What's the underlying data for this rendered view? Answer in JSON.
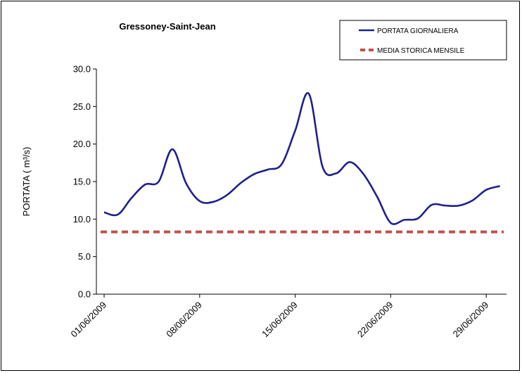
{
  "chart_data": {
    "type": "line",
    "title": "Gressoney-Saint-Jean",
    "xlabel": "",
    "ylabel": "PORTATA ( m³/s)",
    "ylim": [
      0,
      30
    ],
    "yticks": [
      "0.0",
      "5.0",
      "10.0",
      "15.0",
      "20.0",
      "25.0",
      "30.0"
    ],
    "xticks": [
      "01/06/2009",
      "08/06/2009",
      "15/06/2009",
      "22/06/2009",
      "29/06/2009"
    ],
    "legend_position": "top-right",
    "grid": false,
    "series": [
      {
        "name": "PORTATA GIORNALIERA",
        "color": "#1f1f8f",
        "style": "solid",
        "x": [
          "01/06/2009",
          "02/06/2009",
          "03/06/2009",
          "04/06/2009",
          "05/06/2009",
          "06/06/2009",
          "07/06/2009",
          "08/06/2009",
          "09/06/2009",
          "10/06/2009",
          "11/06/2009",
          "12/06/2009",
          "13/06/2009",
          "14/06/2009",
          "15/06/2009",
          "16/06/2009",
          "17/06/2009",
          "18/06/2009",
          "19/06/2009",
          "20/06/2009",
          "21/06/2009",
          "22/06/2009",
          "23/06/2009",
          "24/06/2009",
          "25/06/2009",
          "26/06/2009",
          "27/06/2009",
          "28/06/2009",
          "29/06/2009",
          "30/06/2009"
        ],
        "values": [
          10.9,
          10.6,
          12.8,
          14.6,
          15.0,
          19.3,
          14.8,
          12.4,
          12.3,
          13.2,
          14.8,
          16.0,
          16.6,
          17.3,
          21.8,
          26.7,
          17.0,
          16.1,
          17.6,
          16.0,
          13.0,
          9.5,
          9.9,
          10.1,
          11.9,
          11.8,
          11.8,
          12.5,
          13.9,
          14.4
        ]
      },
      {
        "name": "MEDIA STORICA MENSILE",
        "color": "#c0504d",
        "style": "dashed",
        "x": [
          "01/06/2009",
          "30/06/2009"
        ],
        "values": [
          8.3,
          8.3
        ]
      }
    ]
  }
}
